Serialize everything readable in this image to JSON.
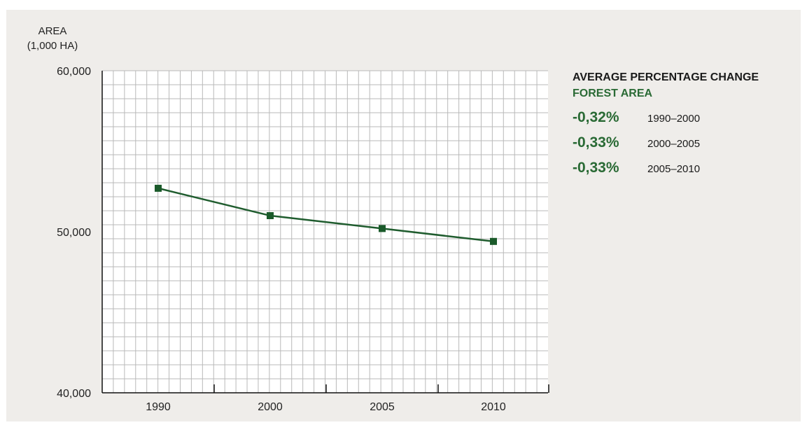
{
  "chart_data": {
    "type": "line",
    "ylabel": [
      "AREA",
      "(1,000 HA)"
    ],
    "xlabel": "",
    "x": [
      "1990",
      "2000",
      "2005",
      "2010"
    ],
    "series": [
      {
        "values": [
          52700,
          51000,
          50200,
          49400
        ]
      }
    ],
    "ylim": [
      40000,
      60000
    ],
    "yticks": [
      "60,000",
      "50,000",
      "40,000"
    ],
    "grid": true,
    "line_color": "#1f5c2e",
    "marker_color": "#1a5a2a",
    "legend": "right"
  },
  "legend": {
    "title": "AVERAGE PERCENTAGE CHANGE",
    "subtitle": "FOREST AREA",
    "rows": [
      {
        "value": "-0,32%",
        "period": "1990–2000"
      },
      {
        "value": "-0,33%",
        "period": "2000–2005"
      },
      {
        "value": "-0,33%",
        "period": "2005–2010"
      }
    ]
  }
}
